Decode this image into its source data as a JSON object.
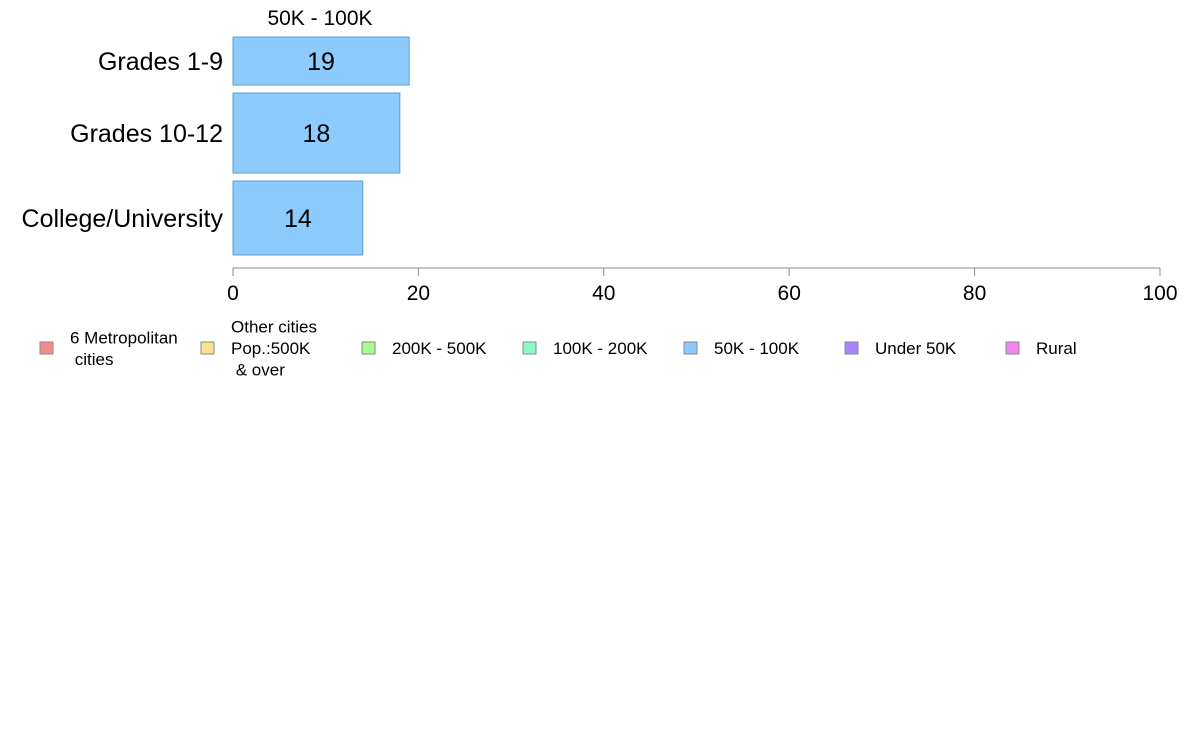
{
  "chart_data": {
    "type": "bar",
    "orientation": "horizontal",
    "title": "50K - 100K",
    "categories": [
      "Grades 1-9",
      "Grades 10-12",
      "College/University"
    ],
    "series": [
      {
        "name": "50K - 100K",
        "values": [
          19,
          18,
          14
        ],
        "color": "#8ccbfc"
      }
    ],
    "xlim": [
      0,
      100
    ],
    "xticks": [
      0,
      20,
      40,
      60,
      80,
      100
    ],
    "xlabel": "",
    "ylabel": "",
    "grid": false,
    "data_labels": true,
    "legend": {
      "placement": "bottom",
      "items": [
        {
          "label": "6 Metropolitan\n cities",
          "color": "#f58c8c"
        },
        {
          "label": "Other cities\nPop.:500K\n & over",
          "color": "#fbe38c"
        },
        {
          "label": "200K - 500K",
          "color": "#a4fc8c"
        },
        {
          "label": "100K - 200K",
          "color": "#8cfcc4"
        },
        {
          "label": "50K - 100K",
          "color": "#8ccbfc"
        },
        {
          "label": "Under 50K",
          "color": "#a884fc"
        },
        {
          "label": "Rural",
          "color": "#f584ec"
        }
      ]
    }
  }
}
